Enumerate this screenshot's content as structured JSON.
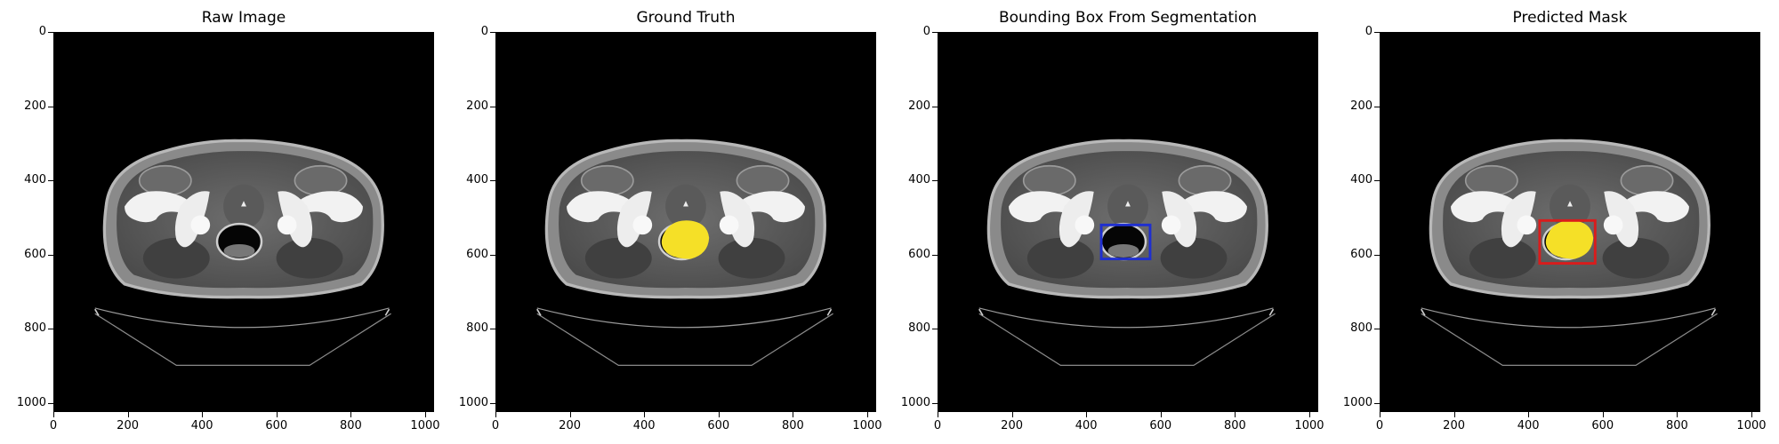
{
  "figure": {
    "panels": [
      {
        "id": "raw",
        "title": "Raw Image",
        "overlay": "none"
      },
      {
        "id": "gt",
        "title": "Ground Truth",
        "overlay": "mask"
      },
      {
        "id": "bbox",
        "title": "Bounding Box From Segmentation",
        "overlay": "box"
      },
      {
        "id": "pred",
        "title": "Predicted Mask",
        "overlay": "mask+box"
      }
    ],
    "y_ticks": [
      "0",
      "200",
      "400",
      "600",
      "800",
      "1000"
    ],
    "x_ticks": [
      "0",
      "200",
      "400",
      "600",
      "800",
      "1000"
    ],
    "colors": {
      "mask": "#f5e027",
      "bbox_seg": "#1f2fd0",
      "bbox_pred": "#d91c1c"
    }
  }
}
